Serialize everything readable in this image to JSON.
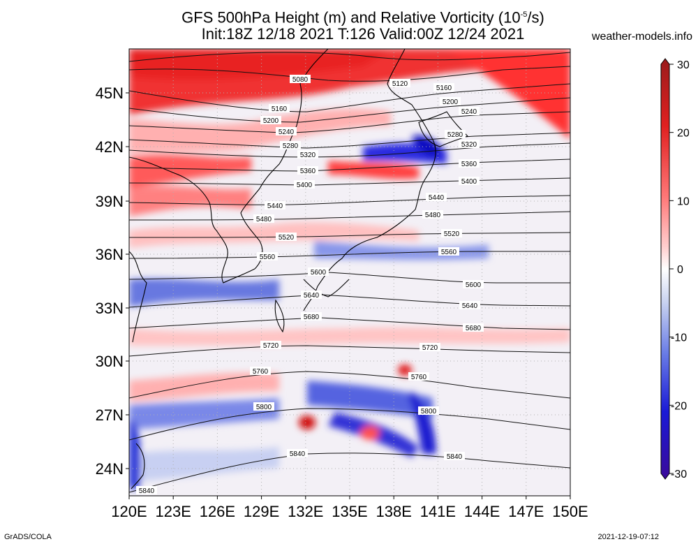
{
  "header": {
    "title_line1": "GFS 500hPa Height (m) and Relative Vorticity (10",
    "title_sup": "-5",
    "title_unit_end": "/s)",
    "title_line2": "Init:18Z 12/18 2021 T:126 Valid:00Z 12/24 2021",
    "site": "weather-models.info"
  },
  "map": {
    "lon_labels": [
      "120E",
      "123E",
      "126E",
      "129E",
      "132E",
      "135E",
      "138E",
      "141E",
      "144E",
      "147E",
      "150E"
    ],
    "lat_labels": [
      "45N",
      "42N",
      "39N",
      "36N",
      "33N",
      "30N",
      "27N",
      "24N"
    ],
    "contour_labels": [
      "5080",
      "5120",
      "5160",
      "5200",
      "5240",
      "5280",
      "5320",
      "5360",
      "5400",
      "5440",
      "5480",
      "5520",
      "5560",
      "5600",
      "5640",
      "5680",
      "5720",
      "5760",
      "5800",
      "5840"
    ]
  },
  "colorbar": {
    "tick_labels": [
      "30",
      "20",
      "10",
      "0",
      "-10",
      "-20",
      "-30"
    ],
    "colors": [
      "#9b1c1c",
      "#e02020",
      "#ff7878",
      "#ffd0d0",
      "#ffffff",
      "#c8d2f0",
      "#6a7de6",
      "#1a1ad6",
      "#3a0a9a"
    ]
  },
  "footer": {
    "left": "GrADS/COLA",
    "right": "2021-12-19-07:12"
  }
}
